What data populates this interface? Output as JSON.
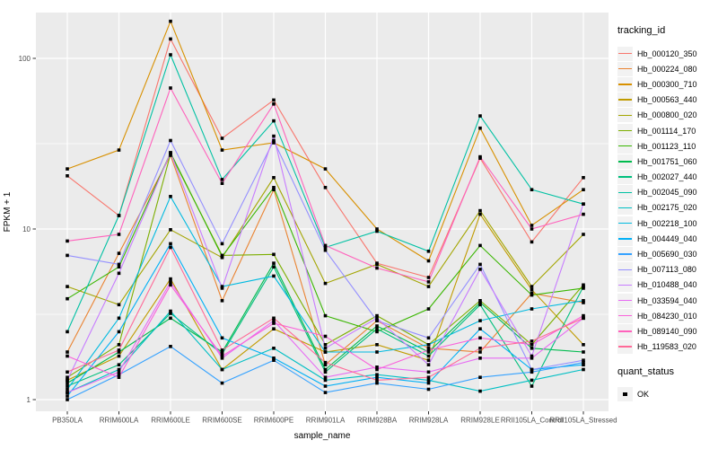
{
  "figure": {
    "panel_background": "#EBEBEB",
    "grid_color": "#FFFFFF",
    "axis_text_color": "#4D4D4D",
    "tick_mark_color": "#333333",
    "point_color": "#000000",
    "legend_key_background": "#F2F2F2"
  },
  "legend": {
    "tracking_title": "tracking_id",
    "quant_title": "quant_status",
    "quant_items": [
      {
        "label": "OK",
        "shape": "black-square"
      }
    ]
  },
  "chart_data": {
    "type": "line",
    "title": "",
    "xlabel": "sample_name",
    "ylabel": "FPKM + 1",
    "y_scale": "log10",
    "y_tick_values": [
      1,
      10,
      100
    ],
    "y_tick_labels": [
      "1",
      "10",
      "100"
    ],
    "y_minor_values": [
      3.1623,
      31.623
    ],
    "ylim_log": [
      0.93,
      185
    ],
    "grid": true,
    "legend_position": "right",
    "point_shape": "square",
    "point_color": "#000000",
    "categories": [
      "PB350LA",
      "RRIM600LA",
      "RRIM600LE",
      "RRIM600SE",
      "RRIM600PE",
      "RRIM901LA",
      "RRIM928BA",
      "RRIM928LA",
      "RRIM928LE",
      "RRII105LA_Control",
      "RRII105LA_Stressed"
    ],
    "series": [
      {
        "name": "Hb_000120_350",
        "color": "#F8766D",
        "values": [
          20.5,
          12,
          130,
          34,
          57,
          17.5,
          6.3,
          5.2,
          26,
          8.4,
          20
        ]
      },
      {
        "name": "Hb_000224_080",
        "color": "#EA8331",
        "values": [
          1.9,
          7.2,
          27,
          3.8,
          17,
          1.6,
          2.9,
          2.0,
          1.9,
          4.2,
          3.7
        ]
      },
      {
        "name": "Hb_000300_710",
        "color": "#D89000",
        "values": [
          22.5,
          29,
          165,
          29,
          32,
          22.5,
          10,
          6.5,
          39,
          10.5,
          17
        ]
      },
      {
        "name": "Hb_000563_440",
        "color": "#C09B00",
        "values": [
          1.3,
          1.8,
          5.1,
          1.5,
          2.6,
          1.9,
          2.1,
          1.7,
          12.2,
          4.4,
          2.1
        ]
      },
      {
        "name": "Hb_000800_020",
        "color": "#A3A500",
        "values": [
          4.6,
          3.6,
          9.9,
          6.8,
          20,
          4.8,
          6.2,
          4.6,
          12.8,
          4.6,
          9.3
        ]
      },
      {
        "name": "Hb_001114_170",
        "color": "#7CAE00",
        "values": [
          1.35,
          2.1,
          27.5,
          7.0,
          7.1,
          2.1,
          3.1,
          2.1,
          3.8,
          2.1,
          4.7
        ]
      },
      {
        "name": "Hb_001123_110",
        "color": "#39B600",
        "values": [
          3.9,
          6.0,
          28,
          6.9,
          17.5,
          3.1,
          2.5,
          3.4,
          8.0,
          4.1,
          4.5
        ]
      },
      {
        "name": "Hb_001751_060",
        "color": "#00BB4E",
        "values": [
          1.25,
          1.9,
          3.0,
          1.9,
          6.3,
          1.5,
          2.7,
          1.9,
          3.7,
          2.0,
          1.9
        ]
      },
      {
        "name": "Hb_002027_440",
        "color": "#00BF7D",
        "values": [
          1.2,
          1.6,
          3.2,
          1.85,
          6.0,
          1.45,
          2.6,
          1.8,
          3.6,
          1.2,
          4.6
        ]
      },
      {
        "name": "Hb_002045_090",
        "color": "#00C1A3",
        "values": [
          2.5,
          12,
          105,
          19.5,
          43,
          7.8,
          9.7,
          7.4,
          46,
          17,
          14
        ]
      },
      {
        "name": "Hb_002175_020",
        "color": "#00BFC4",
        "values": [
          1.1,
          1.5,
          3.3,
          1.5,
          2.0,
          1.3,
          1.4,
          1.3,
          1.12,
          1.3,
          1.5
        ]
      },
      {
        "name": "Hb_002218_100",
        "color": "#00BAE0",
        "values": [
          1.15,
          3.0,
          15.5,
          4.6,
          5.3,
          1.9,
          1.9,
          2.1,
          2.9,
          3.4,
          3.8
        ]
      },
      {
        "name": "Hb_004449_040",
        "color": "#00B0F6",
        "values": [
          1.05,
          2.5,
          8.2,
          2.3,
          1.75,
          1.2,
          1.35,
          1.25,
          2.6,
          1.5,
          1.6
        ]
      },
      {
        "name": "Hb_005690_030",
        "color": "#35A2FF",
        "values": [
          1.0,
          1.4,
          2.05,
          1.25,
          1.7,
          1.1,
          1.25,
          1.15,
          1.35,
          1.45,
          1.65
        ]
      },
      {
        "name": "Hb_007113_080",
        "color": "#9590FF",
        "values": [
          7.0,
          6.2,
          33,
          8.2,
          33,
          7.5,
          2.9,
          2.3,
          6.2,
          1.5,
          1.7
        ]
      },
      {
        "name": "Hb_010488_040",
        "color": "#C77CFF",
        "values": [
          1.3,
          5.5,
          28,
          4.5,
          35,
          2.0,
          3.0,
          1.6,
          5.8,
          1.8,
          14
        ]
      },
      {
        "name": "Hb_033594_040",
        "color": "#E76BF3",
        "values": [
          1.1,
          1.45,
          4.9,
          1.75,
          2.9,
          1.35,
          1.55,
          1.45,
          1.75,
          1.75,
          3.0
        ]
      },
      {
        "name": "Hb_084230_010",
        "color": "#FA62DB",
        "values": [
          1.8,
          1.35,
          4.7,
          1.8,
          2.8,
          2.35,
          1.5,
          1.95,
          2.3,
          2.1,
          3.1
        ]
      },
      {
        "name": "Hb_089140_090",
        "color": "#FF62BC",
        "values": [
          8.5,
          9.3,
          67,
          18.5,
          54,
          8.0,
          5.9,
          4.9,
          26.5,
          10,
          12.2
        ]
      },
      {
        "name": "Hb_119583_020",
        "color": "#FF6A98",
        "values": [
          1.45,
          1.95,
          7.8,
          1.95,
          3.0,
          1.65,
          1.3,
          1.35,
          2.0,
          2.2,
          3.0
        ]
      }
    ]
  }
}
